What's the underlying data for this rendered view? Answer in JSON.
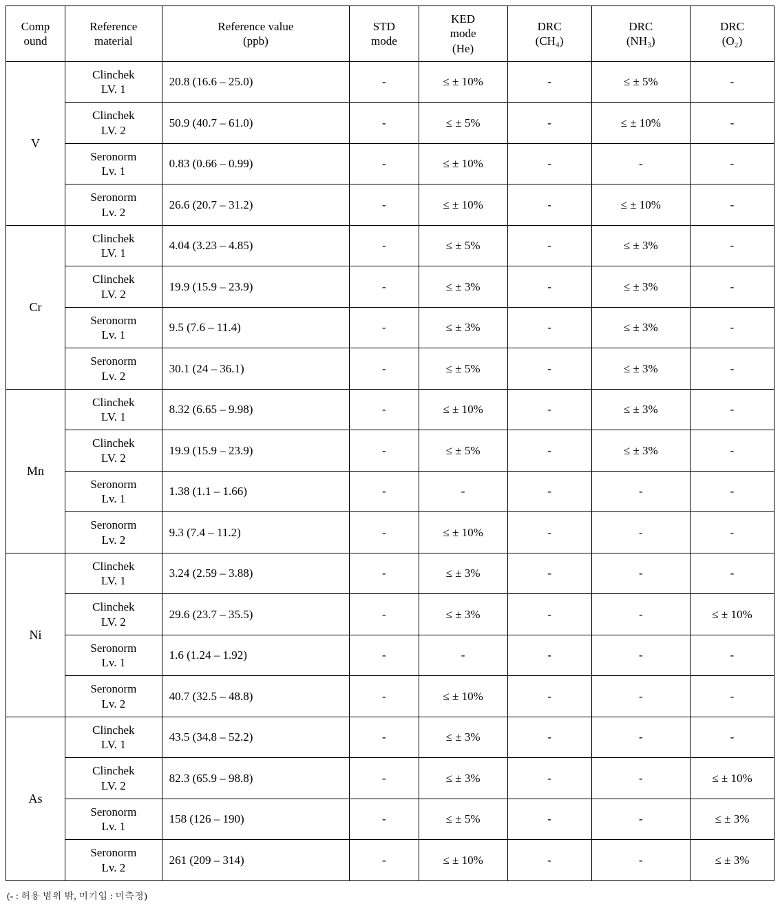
{
  "columns": {
    "compound": "Comp\nound",
    "material": "Reference\nmaterial",
    "ref_value": "Reference value\n(ppb)",
    "std": "STD\nmode",
    "ked": "KED\nmode\n(He)",
    "drc_ch4": "DRC\n(CH₄)",
    "drc_nh3": "DRC\n(NH₃)",
    "drc_o2": "DRC\n(O₂)"
  },
  "col_widths": [
    "60px",
    "98px",
    "190px",
    "70px",
    "90px",
    "85px",
    "100px",
    "85px"
  ],
  "groups": [
    {
      "compound": "V",
      "rows": [
        {
          "material": "Clinchek\nLV. 1",
          "ref": "20.8 (16.6 – 25.0)",
          "std": "-",
          "ked": "≤ ± 10%",
          "ch4": "-",
          "nh3": "≤ ± 5%",
          "o2": "-"
        },
        {
          "material": "Clinchek\nLV. 2",
          "ref": "50.9 (40.7 – 61.0)",
          "std": "-",
          "ked": "≤ ± 5%",
          "ch4": "-",
          "nh3": "≤ ± 10%",
          "o2": "-"
        },
        {
          "material": "Seronorm\nLv. 1",
          "ref": "0.83 (0.66 – 0.99)",
          "std": "-",
          "ked": "≤ ± 10%",
          "ch4": "-",
          "nh3": "-",
          "o2": "-"
        },
        {
          "material": "Seronorm\nLv. 2",
          "ref": "26.6 (20.7 – 31.2)",
          "std": "-",
          "ked": "≤ ± 10%",
          "ch4": "-",
          "nh3": "≤ ± 10%",
          "o2": "-"
        }
      ]
    },
    {
      "compound": "Cr",
      "rows": [
        {
          "material": "Clinchek\nLV. 1",
          "ref": "4.04 (3.23 – 4.85)",
          "std": "-",
          "ked": "≤ ± 5%",
          "ch4": "-",
          "nh3": "≤ ± 3%",
          "o2": "-"
        },
        {
          "material": "Clinchek\nLV. 2",
          "ref": "19.9 (15.9 – 23.9)",
          "std": "-",
          "ked": "≤ ± 3%",
          "ch4": "-",
          "nh3": "≤ ± 3%",
          "o2": "-"
        },
        {
          "material": "Seronorm\nLv. 1",
          "ref": "9.5 (7.6 – 11.4)",
          "std": "-",
          "ked": "≤ ± 3%",
          "ch4": "-",
          "nh3": "≤ ± 3%",
          "o2": "-"
        },
        {
          "material": "Seronorm\nLv. 2",
          "ref": "30.1 (24 – 36.1)",
          "std": "-",
          "ked": "≤ ± 5%",
          "ch4": "-",
          "nh3": "≤ ± 3%",
          "o2": "-"
        }
      ]
    },
    {
      "compound": "Mn",
      "rows": [
        {
          "material": "Clinchek\nLV. 1",
          "ref": "8.32 (6.65 – 9.98)",
          "std": "-",
          "ked": "≤ ± 10%",
          "ch4": "-",
          "nh3": "≤ ± 3%",
          "o2": "-"
        },
        {
          "material": "Clinchek\nLV. 2",
          "ref": "19.9 (15.9 – 23.9)",
          "std": "-",
          "ked": "≤ ± 5%",
          "ch4": "-",
          "nh3": "≤ ± 3%",
          "o2": "-"
        },
        {
          "material": "Seronorm\nLv. 1",
          "ref": "1.38 (1.1 – 1.66)",
          "std": "-",
          "ked": "-",
          "ch4": "-",
          "nh3": "-",
          "o2": "-"
        },
        {
          "material": "Seronorm\nLv. 2",
          "ref": "9.3 (7.4 – 11.2)",
          "std": "-",
          "ked": "≤ ± 10%",
          "ch4": "-",
          "nh3": "-",
          "o2": "-"
        }
      ]
    },
    {
      "compound": "Ni",
      "rows": [
        {
          "material": "Clinchek\nLV. 1",
          "ref": "3.24 (2.59 – 3.88)",
          "std": "-",
          "ked": "≤ ± 3%",
          "ch4": "-",
          "nh3": "-",
          "o2": "-"
        },
        {
          "material": "Clinchek\nLV. 2",
          "ref": "29.6 (23.7 – 35.5)",
          "std": "-",
          "ked": "≤ ± 3%",
          "ch4": "-",
          "nh3": "-",
          "o2": "≤ ± 10%"
        },
        {
          "material": "Seronorm\nLv. 1",
          "ref": "1.6 (1.24 – 1.92)",
          "std": "-",
          "ked": "-",
          "ch4": "-",
          "nh3": "-",
          "o2": "-"
        },
        {
          "material": "Seronorm\nLv. 2",
          "ref": "40.7 (32.5 – 48.8)",
          "std": "-",
          "ked": "≤ ± 10%",
          "ch4": "-",
          "nh3": "-",
          "o2": "-"
        }
      ]
    },
    {
      "compound": "As",
      "rows": [
        {
          "material": "Clinchek\nLV. 1",
          "ref": "43.5 (34.8 – 52.2)",
          "std": "-",
          "ked": "≤ ± 3%",
          "ch4": "-",
          "nh3": "-",
          "o2": "-"
        },
        {
          "material": "Clinchek\nLV. 2",
          "ref": "82.3 (65.9 – 98.8)",
          "std": "-",
          "ked": "≤ ± 3%",
          "ch4": "-",
          "nh3": "-",
          "o2": "≤ ± 10%"
        },
        {
          "material": "Seronorm\nLv. 1",
          "ref": "158 (126 – 190)",
          "std": "-",
          "ked": "≤ ± 5%",
          "ch4": "-",
          "nh3": "-",
          "o2": "≤ ± 3%"
        },
        {
          "material": "Seronorm\nLv. 2",
          "ref": "261 (209 – 314)",
          "std": "-",
          "ked": "≤ ± 10%",
          "ch4": "-",
          "nh3": "-",
          "o2": "≤ ± 3%"
        }
      ]
    }
  ],
  "footnote": "(- : 허용 범위 밖, 미기입 : 미측정)"
}
